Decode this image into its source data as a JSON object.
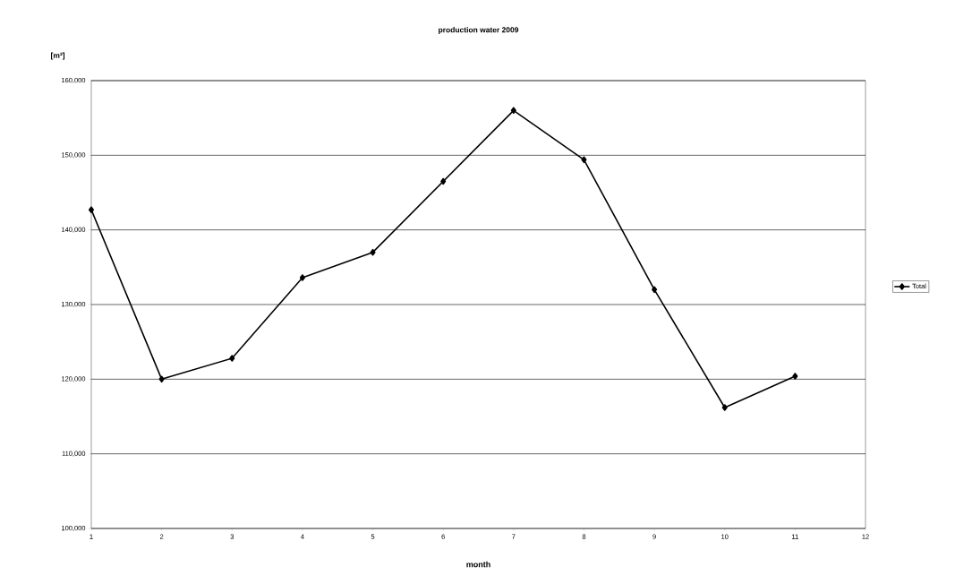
{
  "chart_data": {
    "type": "line",
    "title": "production water 2009",
    "xlabel": "month",
    "ylabel": "[m³]",
    "x": [
      1,
      2,
      3,
      4,
      5,
      6,
      7,
      8,
      9,
      10,
      11
    ],
    "series": [
      {
        "name": "Total",
        "color": "#000000",
        "values": [
          142700,
          120000,
          122800,
          133600,
          137000,
          146500,
          156000,
          149400,
          132000,
          116200,
          120400
        ]
      }
    ],
    "xlim": [
      1,
      12
    ],
    "xticks": [
      1,
      2,
      3,
      4,
      5,
      6,
      7,
      8,
      9,
      10,
      11,
      12
    ],
    "ylim": [
      100000,
      160000
    ],
    "yticks": [
      {
        "value": 100000,
        "label": "100,000"
      },
      {
        "value": 110000,
        "label": "110,000"
      },
      {
        "value": 120000,
        "label": "120,000"
      },
      {
        "value": 130000,
        "label": "130,000"
      },
      {
        "value": 140000,
        "label": "140,000"
      },
      {
        "value": 150000,
        "label": "150,000"
      },
      {
        "value": 160000,
        "label": "160,000"
      }
    ],
    "grid": "y",
    "legend": "right",
    "marker": "diamond",
    "line_style": "solid"
  }
}
